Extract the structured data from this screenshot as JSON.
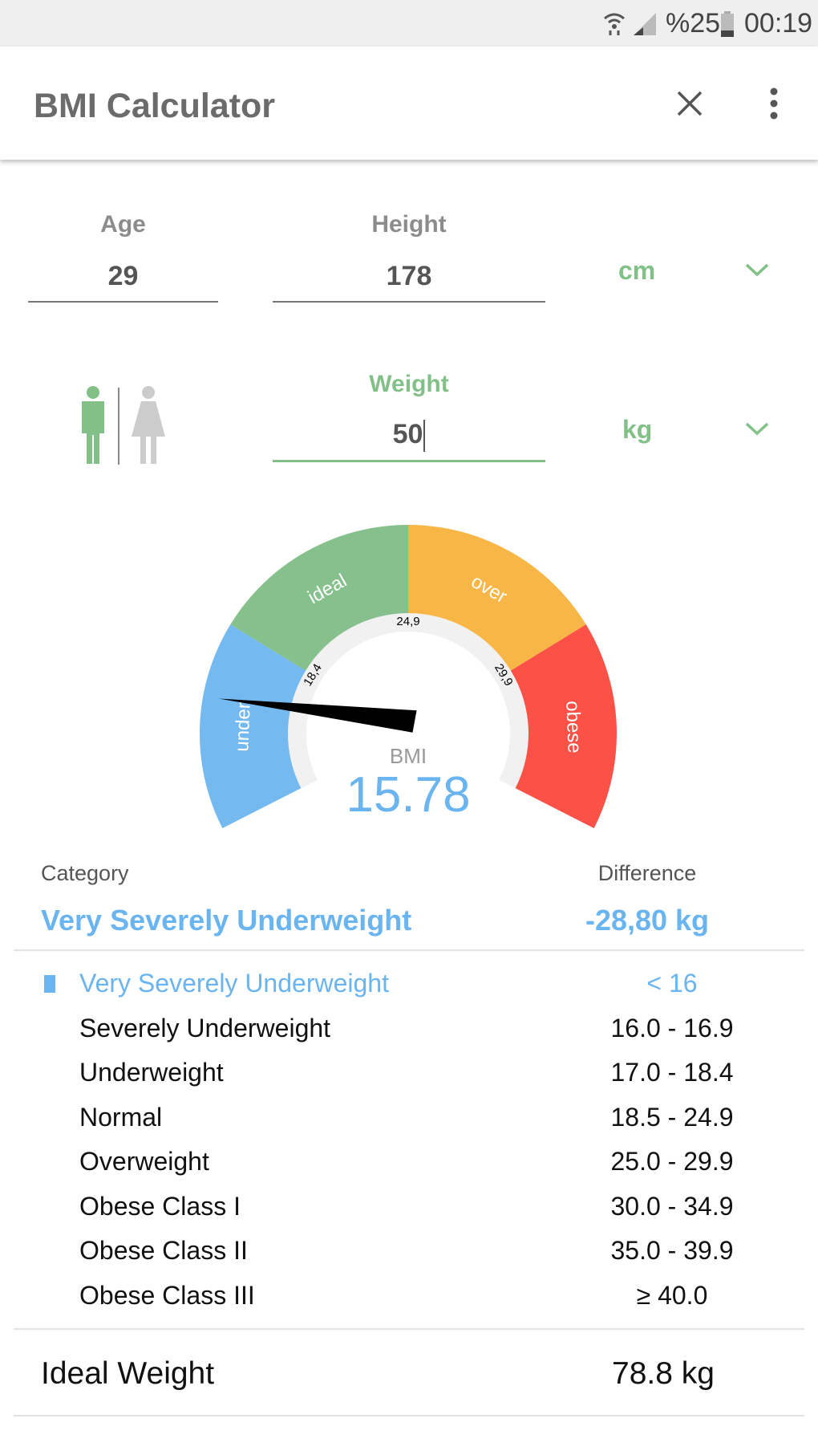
{
  "status": {
    "battery": "%25",
    "time": "00:19",
    "icons": [
      "wifi-icon",
      "signal-icon",
      "battery-icon"
    ]
  },
  "appbar": {
    "title": "BMI Calculator",
    "close": "close-icon",
    "menu": "more-vert-icon"
  },
  "form": {
    "age": {
      "label": "Age",
      "value": "29"
    },
    "height": {
      "label": "Height",
      "value": "178",
      "unit": "cm"
    },
    "weight": {
      "label": "Weight",
      "value": "50",
      "unit": "kg"
    },
    "gender": {
      "selected": "male"
    }
  },
  "gauge": {
    "segments": [
      {
        "label": "under",
        "color": "#74b9f0"
      },
      {
        "label": "ideal",
        "color": "#86c08c"
      },
      {
        "label": "over",
        "color": "#f8b646"
      },
      {
        "label": "obese",
        "color": "#fc5146"
      }
    ],
    "ticks": [
      "18,4",
      "24,9",
      "29,9"
    ],
    "bmi_label": "BMI",
    "bmi_value": "15.78",
    "bmi": 15.78,
    "accent": "#6ab4f0"
  },
  "result": {
    "category_label": "Category",
    "category": "Very Severely Underweight",
    "difference_label": "Difference",
    "difference": "-28,80 kg"
  },
  "table": [
    {
      "name": "Very Severely Underweight",
      "range": "< 16",
      "active": true
    },
    {
      "name": "Severely Underweight",
      "range": "16.0 - 16.9"
    },
    {
      "name": "Underweight",
      "range": "17.0 - 18.4"
    },
    {
      "name": "Normal",
      "range": "18.5 - 24.9"
    },
    {
      "name": "Overweight",
      "range": "25.0 - 29.9"
    },
    {
      "name": "Obese Class I",
      "range": "30.0 - 34.9"
    },
    {
      "name": "Obese Class II",
      "range": "35.0 - 39.9"
    },
    {
      "name": "Obese Class III",
      "range": "≥ 40.0"
    }
  ],
  "ideal": {
    "label": "Ideal Weight",
    "value": "78.8 kg"
  }
}
